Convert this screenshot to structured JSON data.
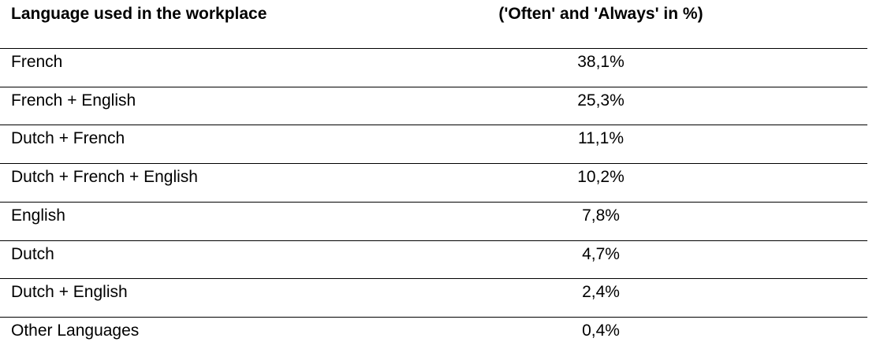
{
  "table": {
    "headers": [
      "Language used in the workplace",
      "('Often' and 'Always' in %)"
    ],
    "rows": [
      [
        "French",
        "38,1%"
      ],
      [
        "French + English",
        "25,3%"
      ],
      [
        "Dutch + French",
        "11,1%"
      ],
      [
        "Dutch + French + English",
        "10,2%"
      ],
      [
        "English",
        "7,8%"
      ],
      [
        "Dutch",
        "4,7%"
      ],
      [
        "Dutch + English",
        "2,4%"
      ],
      [
        "Other Languages",
        "0,4%"
      ]
    ]
  }
}
